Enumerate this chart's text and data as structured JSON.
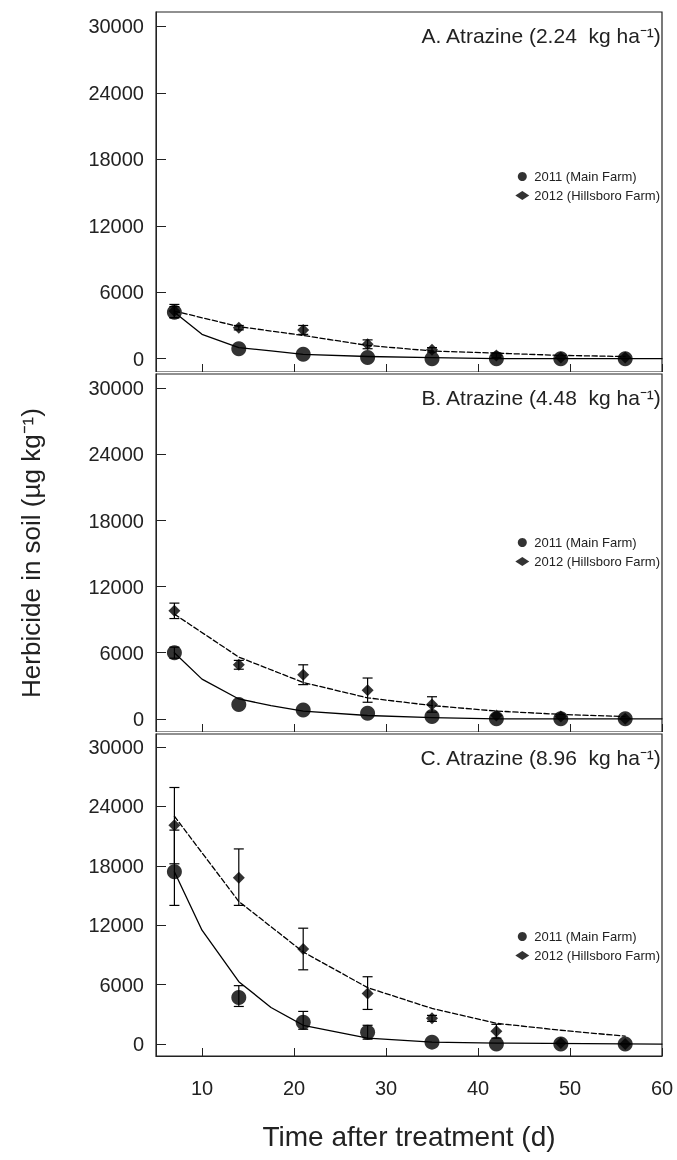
{
  "chart_data": [
    {
      "type": "scatter",
      "title": "A. Atrazine (2.24  kg ha⁻¹)",
      "xlim": [
        5,
        60
      ],
      "xticks": [
        10,
        20,
        30,
        40,
        50,
        60
      ],
      "ylim": [
        -1200,
        31300
      ],
      "yticks": [
        0,
        6000,
        12000,
        18000,
        24000,
        30000
      ],
      "tick_labels": "y",
      "legend": "right",
      "grid": false,
      "series": [
        {
          "name": "2011 (Main Farm)",
          "type": "scatter",
          "marker": "circle",
          "color": "#000000",
          "x": [
            7,
            14,
            21,
            28,
            35,
            42,
            49,
            56
          ],
          "values": [
            4200,
            900,
            400,
            100,
            0,
            0,
            0,
            0
          ],
          "errors": [
            500,
            null,
            null,
            null,
            null,
            null,
            null,
            null
          ]
        },
        {
          "name": "2012 (Hillsboro Farm)",
          "type": "scatter",
          "marker": "diamond",
          "color": "#000000",
          "x": [
            7,
            14,
            21,
            28,
            35,
            42,
            49,
            56
          ],
          "values": [
            4300,
            2800,
            2600,
            1300,
            800,
            300,
            100,
            100
          ],
          "errors": [
            600,
            200,
            400,
            400,
            200,
            200,
            null,
            null
          ]
        },
        {
          "type": "line",
          "marker": "none",
          "line_style": "solid",
          "color": "#000000",
          "x": [
            7,
            10,
            14,
            17.5,
            21,
            28,
            35,
            42,
            60
          ],
          "values": [
            4200,
            2200,
            1000,
            700,
            400,
            200,
            100,
            0,
            0
          ]
        },
        {
          "type": "line",
          "marker": "none",
          "line_style": "dashed",
          "color": "#000000",
          "x": [
            7,
            14,
            21,
            28,
            35,
            42,
            49,
            56
          ],
          "values": [
            4300,
            2900,
            2100,
            1200,
            700,
            500,
            300,
            200
          ]
        }
      ]
    },
    {
      "type": "scatter",
      "title": "B. Atrazine (4.48  kg ha⁻¹)",
      "ylabel": "Herbicide in soil (µg kg⁻¹)",
      "xlim": [
        5,
        60
      ],
      "xticks": [
        10,
        20,
        30,
        40,
        50,
        60
      ],
      "ylim": [
        -1200,
        31300
      ],
      "yticks": [
        0,
        6000,
        12000,
        18000,
        24000,
        30000
      ],
      "tick_labels": "y",
      "legend": "right",
      "grid": false,
      "series": [
        {
          "name": "2011 (Main Farm)",
          "type": "scatter",
          "marker": "circle",
          "color": "#000000",
          "x": [
            7,
            14,
            21,
            28,
            35,
            42,
            49,
            56
          ],
          "values": [
            6000,
            1300,
            800,
            500,
            200,
            0,
            0,
            0
          ],
          "errors": [
            500,
            null,
            null,
            null,
            null,
            null,
            null,
            null
          ]
        },
        {
          "name": "2012 (Hillsboro Farm)",
          "type": "scatter",
          "marker": "diamond",
          "color": "#000000",
          "x": [
            7,
            14,
            21,
            28,
            35,
            42,
            49,
            56
          ],
          "values": [
            9800,
            4900,
            4000,
            2600,
            1300,
            300,
            200,
            0
          ],
          "errors": [
            700,
            400,
            900,
            1100,
            700,
            null,
            null,
            null
          ]
        },
        {
          "type": "line",
          "marker": "none",
          "line_style": "solid",
          "color": "#000000",
          "x": [
            7,
            10,
            14,
            17.5,
            21,
            28,
            35,
            42,
            60
          ],
          "values": [
            6000,
            3600,
            1800,
            1200,
            700,
            300,
            100,
            0,
            0
          ]
        },
        {
          "type": "line",
          "marker": "none",
          "line_style": "dashed",
          "color": "#000000",
          "x": [
            7,
            14,
            21,
            28,
            35,
            42,
            49,
            56
          ],
          "values": [
            9500,
            5600,
            3300,
            1900,
            1200,
            700,
            400,
            200
          ]
        }
      ]
    },
    {
      "type": "scatter",
      "title": "C. Atrazine (8.96  kg ha⁻¹)",
      "xlabel": "Time after treatment (d)",
      "xlim": [
        5,
        60
      ],
      "xticks": [
        10,
        20,
        30,
        40,
        50,
        60
      ],
      "ylim": [
        -1200,
        31300
      ],
      "yticks": [
        0,
        6000,
        12000,
        18000,
        24000,
        30000
      ],
      "legend": "right",
      "grid": false,
      "series": [
        {
          "name": "2011 (Main Farm)",
          "type": "scatter",
          "marker": "circle",
          "color": "#000000",
          "x": [
            7,
            14,
            21,
            28,
            35,
            42,
            49,
            56
          ],
          "values": [
            17400,
            4700,
            2200,
            1200,
            200,
            0,
            0,
            0
          ],
          "errors": [
            [
              14000,
              21600
            ],
            [
              3800,
              5900
            ],
            [
              1500,
              3300
            ],
            [
              500,
              1900
            ],
            null,
            null,
            null,
            null
          ]
        },
        {
          "name": "2012 (Hillsboro Farm)",
          "type": "scatter",
          "marker": "diamond",
          "color": "#000000",
          "x": [
            7,
            14,
            21,
            28,
            35,
            42,
            49,
            56
          ],
          "values": [
            22100,
            16800,
            9600,
            5100,
            2600,
            1300,
            100,
            0
          ],
          "errors": [
            [
              18200,
              25900
            ],
            [
              14000,
              19700
            ],
            [
              7500,
              11700
            ],
            [
              3500,
              6800
            ],
            300,
            700,
            null,
            null
          ]
        },
        {
          "type": "line",
          "marker": "none",
          "line_style": "solid",
          "color": "#000000",
          "x": [
            7,
            10,
            14,
            17.5,
            21,
            28,
            35,
            42,
            60
          ],
          "values": [
            17400,
            11500,
            6300,
            3700,
            1900,
            600,
            200,
            100,
            0
          ]
        },
        {
          "type": "line",
          "marker": "none",
          "line_style": "dashed",
          "color": "#000000",
          "x": [
            7,
            14,
            21,
            28,
            35,
            42,
            49,
            56
          ],
          "values": [
            23000,
            14400,
            9300,
            5700,
            3600,
            2100,
            1400,
            800
          ]
        }
      ]
    }
  ]
}
